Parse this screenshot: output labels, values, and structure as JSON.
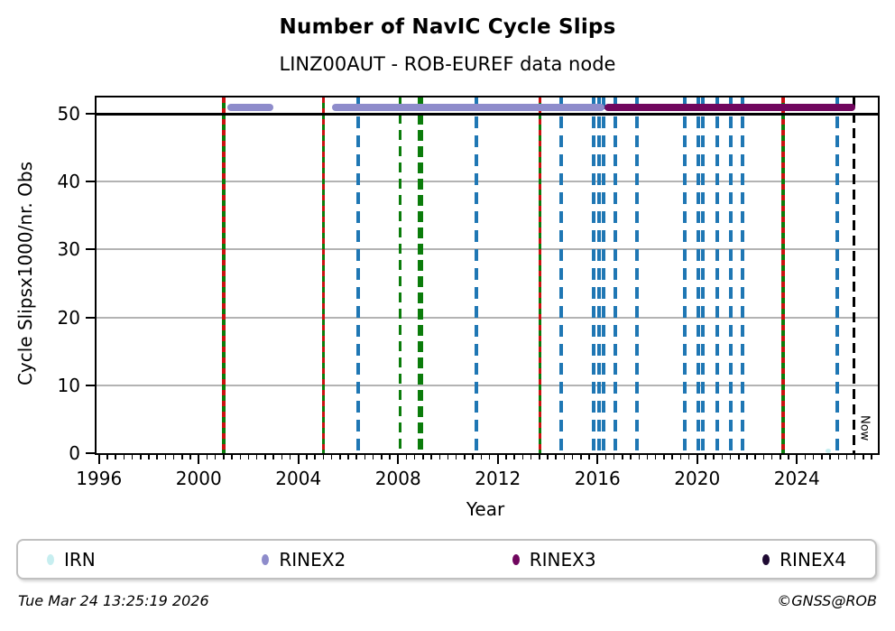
{
  "title": "Number of NavIC Cycle Slips",
  "subtitle": "LINZ00AUT - ROB-EUREF data node",
  "footer": {
    "timestamp": "Tue Mar 24 13:25:19 2026",
    "credit": "©GNSS@ROB"
  },
  "legend": {
    "items": [
      {
        "label": "IRN",
        "color": "#c7eef0"
      },
      {
        "label": "RINEX2",
        "color": "#8e8ccb"
      },
      {
        "label": "RINEX3",
        "color": "#70065e"
      },
      {
        "label": "RINEX4",
        "color": "#1f0a33"
      }
    ]
  },
  "chart_data": {
    "type": "scatter",
    "title": "Number of NavIC Cycle Slips",
    "subtitle": "LINZ00AUT - ROB-EUREF data node",
    "xlabel": "Year",
    "ylabel": "Cycle Slipsx1000/nr. Obs",
    "xlim": [
      1995.9,
      2027.25
    ],
    "ylim": [
      0,
      52.4
    ],
    "x_major_ticks": [
      1996,
      2000,
      2004,
      2008,
      2012,
      2016,
      2020,
      2024
    ],
    "x_minor_step": 0.33333,
    "y_ticks": [
      0,
      10,
      20,
      30,
      40,
      50
    ],
    "grid_values": [
      10,
      20,
      30,
      40
    ],
    "grid_color": "#b3b3b3",
    "hline": {
      "value": 50,
      "color": "#000000",
      "thickness": 3
    },
    "series": [
      {
        "name": "IRN",
        "color": "#c7eef0",
        "marker_points": [
          {
            "x": 2025.27,
            "y": 0.3
          }
        ]
      },
      {
        "name": "RINEX2",
        "color": "#8e8ccb",
        "value": 50.9,
        "segments": [
          [
            2001.14,
            2003.01
          ],
          [
            2005.34,
            2016.29
          ]
        ]
      },
      {
        "name": "RINEX3",
        "color": "#70065e",
        "value": 50.9,
        "segments": [
          [
            2016.29,
            2026.34
          ]
        ]
      },
      {
        "name": "RINEX4",
        "color": "#1f0a33",
        "segments": []
      }
    ],
    "line_styles": {
      "green_red": {
        "colors": [
          "#cc1111",
          "#0b7c0b"
        ],
        "width": 3.5,
        "dash": [
          6,
          6
        ]
      },
      "green_dashed_thin": {
        "color": "#0b7c0b",
        "width": 3,
        "dash": [
          11,
          7
        ]
      },
      "green_dashed_thick": {
        "color": "#0b7c0b",
        "width": 6,
        "dash": [
          12,
          6
        ]
      },
      "blue_dashed": {
        "color": "#1f77b4",
        "width": 3.5,
        "dash": [
          13,
          8
        ]
      },
      "black_dashed": {
        "color": "#000000",
        "width": 2.5,
        "dash": [
          11,
          6
        ]
      }
    },
    "event_lines": [
      {
        "style": "green_red",
        "years": [
          2001.0,
          2005.0,
          2013.69,
          2023.45
        ]
      },
      {
        "style": "green_dashed_thin",
        "years": [
          2008.09
        ]
      },
      {
        "style": "green_dashed_thick",
        "years": [
          2008.91
        ]
      },
      {
        "style": "blue_dashed",
        "years": [
          2006.39,
          2011.14,
          2014.55,
          2015.84,
          2016.06,
          2016.24,
          2016.71,
          2017.58,
          2019.5,
          2020.04,
          2020.22,
          2020.8,
          2021.35,
          2021.82,
          2025.62
        ]
      },
      {
        "style": "black_dashed",
        "years": [
          2026.29
        ]
      }
    ],
    "annotation": {
      "text": "Now",
      "year": 2026.29,
      "y_top_value": 5.6
    },
    "legend_position": "bottom",
    "grid": "horizontal-only"
  }
}
